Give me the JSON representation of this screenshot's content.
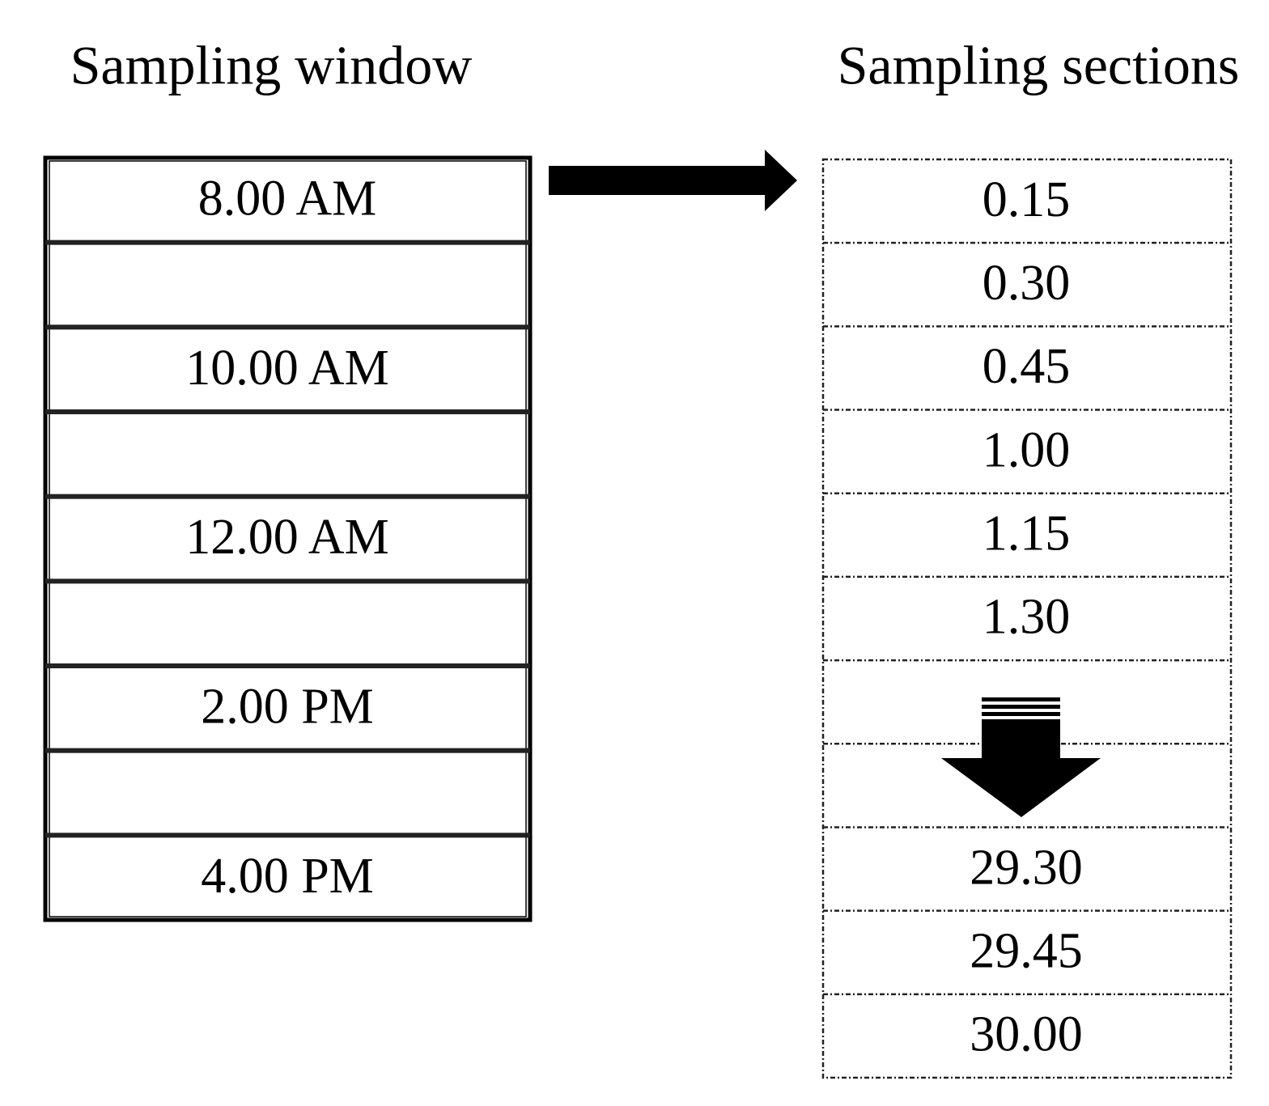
{
  "window": {
    "title": "Sampling window",
    "rows": [
      "8.00 AM",
      null,
      "10.00 AM",
      null,
      "12.00 AM",
      null,
      "2.00 PM",
      null,
      "4.00 PM"
    ]
  },
  "sections": {
    "title": "Sampling sections",
    "rows": [
      "0.15",
      "0.30",
      "0.45",
      "1.00",
      "1.15",
      "1.30",
      null,
      null,
      "29.30",
      "29.45",
      "30.00"
    ]
  }
}
